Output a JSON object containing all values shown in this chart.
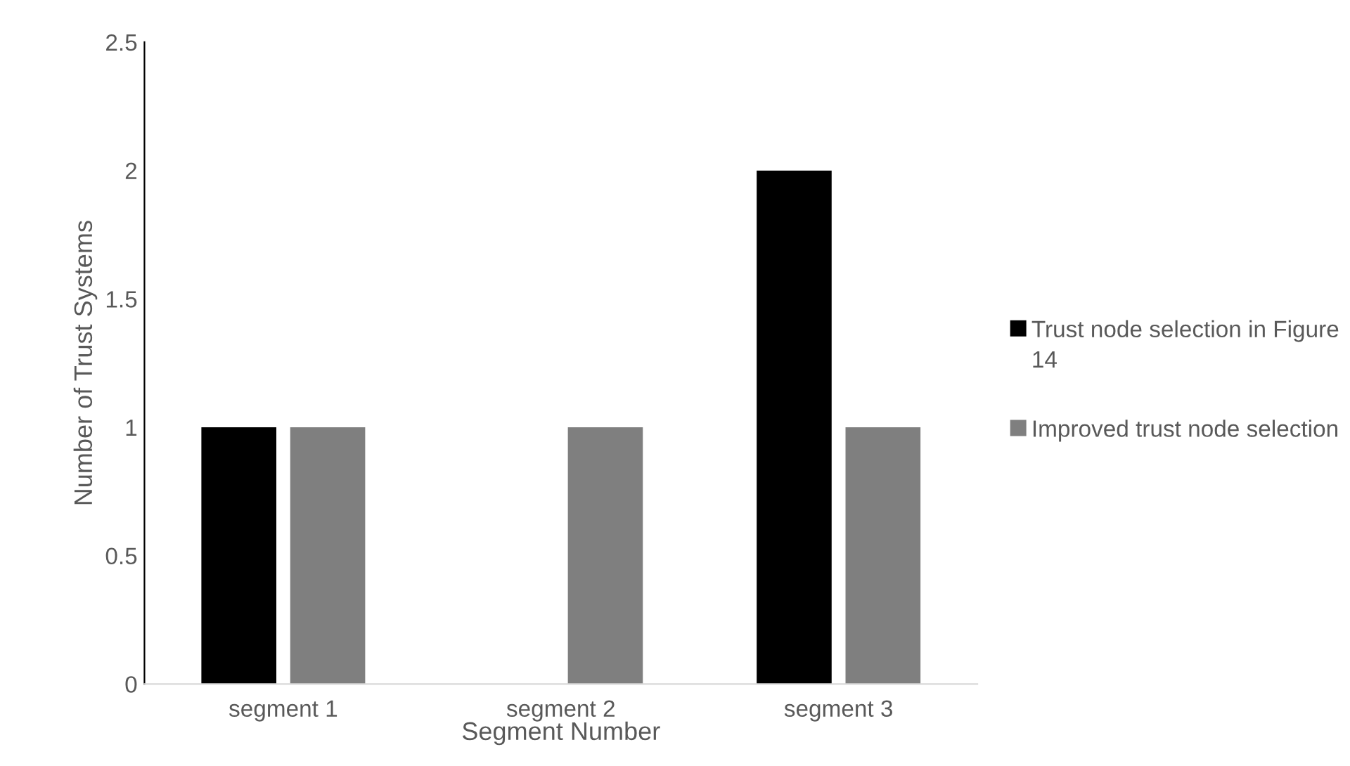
{
  "chart_data": {
    "type": "bar",
    "xlabel": "Segment Number",
    "ylabel": "Number of Trust Systems",
    "categories": [
      "segment 1",
      "segment 2",
      "segment 3"
    ],
    "series": [
      {
        "name": "Trust node selection in Figure 14",
        "color": "#000000",
        "values": [
          1,
          0,
          2
        ]
      },
      {
        "name": "Improved trust node selection",
        "color": "#7f7f7f",
        "values": [
          1,
          1,
          1
        ]
      }
    ],
    "ylim": [
      0,
      2.5
    ],
    "yticks": [
      0,
      0.5,
      1,
      1.5,
      2,
      2.5
    ],
    "grid": false,
    "legend": "right"
  }
}
